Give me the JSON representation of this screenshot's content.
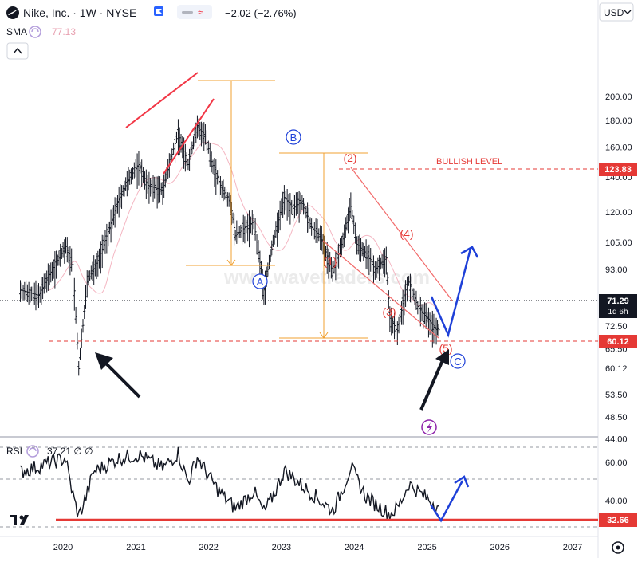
{
  "header": {
    "symbol_line": "Nike, Inc. · 1W · NYSE",
    "change": "−2.02 (−2.76%)",
    "currency": "USD",
    "sma_label": "SMA",
    "sma_value": "77.13",
    "rsi_label": "RSI",
    "rsi_values": "37.21 ∅ ∅"
  },
  "watermark": "www.wavetraders.com",
  "colors": {
    "red": "#e53935",
    "orange": "#f0a030",
    "blue": "#1e40d8",
    "black": "#131722",
    "purple": "#8e24aa"
  },
  "price_badges": {
    "bullish": "123.83",
    "current": "71.29",
    "countdown": "1d 6h",
    "support": "60.12",
    "rsi_line": "32.66"
  },
  "annotations": {
    "bullish_level": "BULLISH LEVEL",
    "wave_A": "A",
    "wave_B": "B",
    "wave_C": "C",
    "wave_1": "(1)",
    "wave_2": "(2)",
    "wave_3": "(3)",
    "wave_4": "(4)",
    "wave_5": "(5)"
  },
  "chart_data": {
    "type": "line",
    "price_axis": {
      "scale": "log",
      "ticks": [
        "200.00",
        "180.00",
        "160.00",
        "140.00",
        "120.00",
        "105.00",
        "93.00",
        "81.00",
        "72.50",
        "65.50",
        "60.12",
        "53.50",
        "48.50",
        "44.00"
      ]
    },
    "rsi_axis": {
      "ticks": [
        "60.00",
        "40.00",
        "28.00"
      ]
    },
    "time_axis": {
      "ticks": [
        "2020",
        "2021",
        "2022",
        "2023",
        "2024",
        "2025",
        "2026",
        "2027"
      ]
    },
    "series": [
      {
        "values": [
          [
            "2019-06-01",
            85
          ],
          [
            "2019-09-01",
            83
          ],
          [
            "2019-11-01",
            92
          ],
          [
            "2020-01-15",
            103
          ],
          [
            "2020-02-20",
            95
          ],
          [
            "2020-03-20",
            60
          ],
          [
            "2020-05-01",
            88
          ],
          [
            "2020-07-01",
            98
          ],
          [
            "2020-08-15",
            110
          ],
          [
            "2020-10-01",
            125
          ],
          [
            "2020-12-01",
            140
          ],
          [
            "2021-01-15",
            148
          ],
          [
            "2021-03-01",
            135
          ],
          [
            "2021-05-15",
            132
          ],
          [
            "2021-07-01",
            155
          ],
          [
            "2021-08-01",
            170
          ],
          [
            "2021-09-20",
            148
          ],
          [
            "2021-11-05",
            175
          ],
          [
            "2021-12-15",
            168
          ],
          [
            "2022-01-15",
            150
          ],
          [
            "2022-03-01",
            135
          ],
          [
            "2022-04-20",
            125
          ],
          [
            "2022-05-15",
            108
          ],
          [
            "2022-07-01",
            112
          ],
          [
            "2022-08-15",
            115
          ],
          [
            "2022-09-15",
            96
          ],
          [
            "2022-10-05",
            85
          ],
          [
            "2022-11-20",
            105
          ],
          [
            "2023-01-15",
            128
          ],
          [
            "2023-03-01",
            122
          ],
          [
            "2023-04-15",
            126
          ],
          [
            "2023-06-01",
            112
          ],
          [
            "2023-07-15",
            108
          ],
          [
            "2023-09-15",
            92
          ],
          [
            "2023-10-30",
            104
          ],
          [
            "2023-12-15",
            123
          ],
          [
            "2024-01-15",
            104
          ],
          [
            "2024-03-01",
            100
          ],
          [
            "2024-04-15",
            93
          ],
          [
            "2024-06-10",
            98
          ],
          [
            "2024-06-28",
            75
          ],
          [
            "2024-08-05",
            71
          ],
          [
            "2024-09-15",
            85
          ],
          [
            "2024-10-01",
            88
          ],
          [
            "2024-11-15",
            79
          ],
          [
            "2024-12-20",
            76
          ],
          [
            "2025-01-15",
            74
          ],
          [
            "2025-02-10",
            72
          ],
          [
            "2025-02-28",
            71.29
          ]
        ]
      },
      {
        "name": "SMA",
        "values": [
          [
            "2025-02-28",
            77.13
          ]
        ]
      },
      {
        "name": "RSI",
        "values": [
          [
            "2019-06-01",
            55
          ],
          [
            "2019-11-01",
            60
          ],
          [
            "2020-01-15",
            62
          ],
          [
            "2020-03-20",
            32
          ],
          [
            "2020-06-01",
            55
          ],
          [
            "2020-10-01",
            62
          ],
          [
            "2021-01-15",
            64
          ],
          [
            "2021-05-15",
            57
          ],
          [
            "2021-08-01",
            65
          ],
          [
            "2021-09-20",
            50
          ],
          [
            "2021-11-05",
            63
          ],
          [
            "2022-03-01",
            44
          ],
          [
            "2022-05-15",
            36
          ],
          [
            "2022-08-15",
            45
          ],
          [
            "2022-10-05",
            34
          ],
          [
            "2023-01-15",
            56
          ],
          [
            "2023-06-01",
            44
          ],
          [
            "2023-09-15",
            35
          ],
          [
            "2023-12-15",
            58
          ],
          [
            "2024-03-01",
            42
          ],
          [
            "2024-06-28",
            33
          ],
          [
            "2024-08-05",
            36
          ],
          [
            "2024-10-01",
            49
          ],
          [
            "2024-12-20",
            42
          ],
          [
            "2025-02-28",
            37.21
          ]
        ]
      }
    ]
  }
}
